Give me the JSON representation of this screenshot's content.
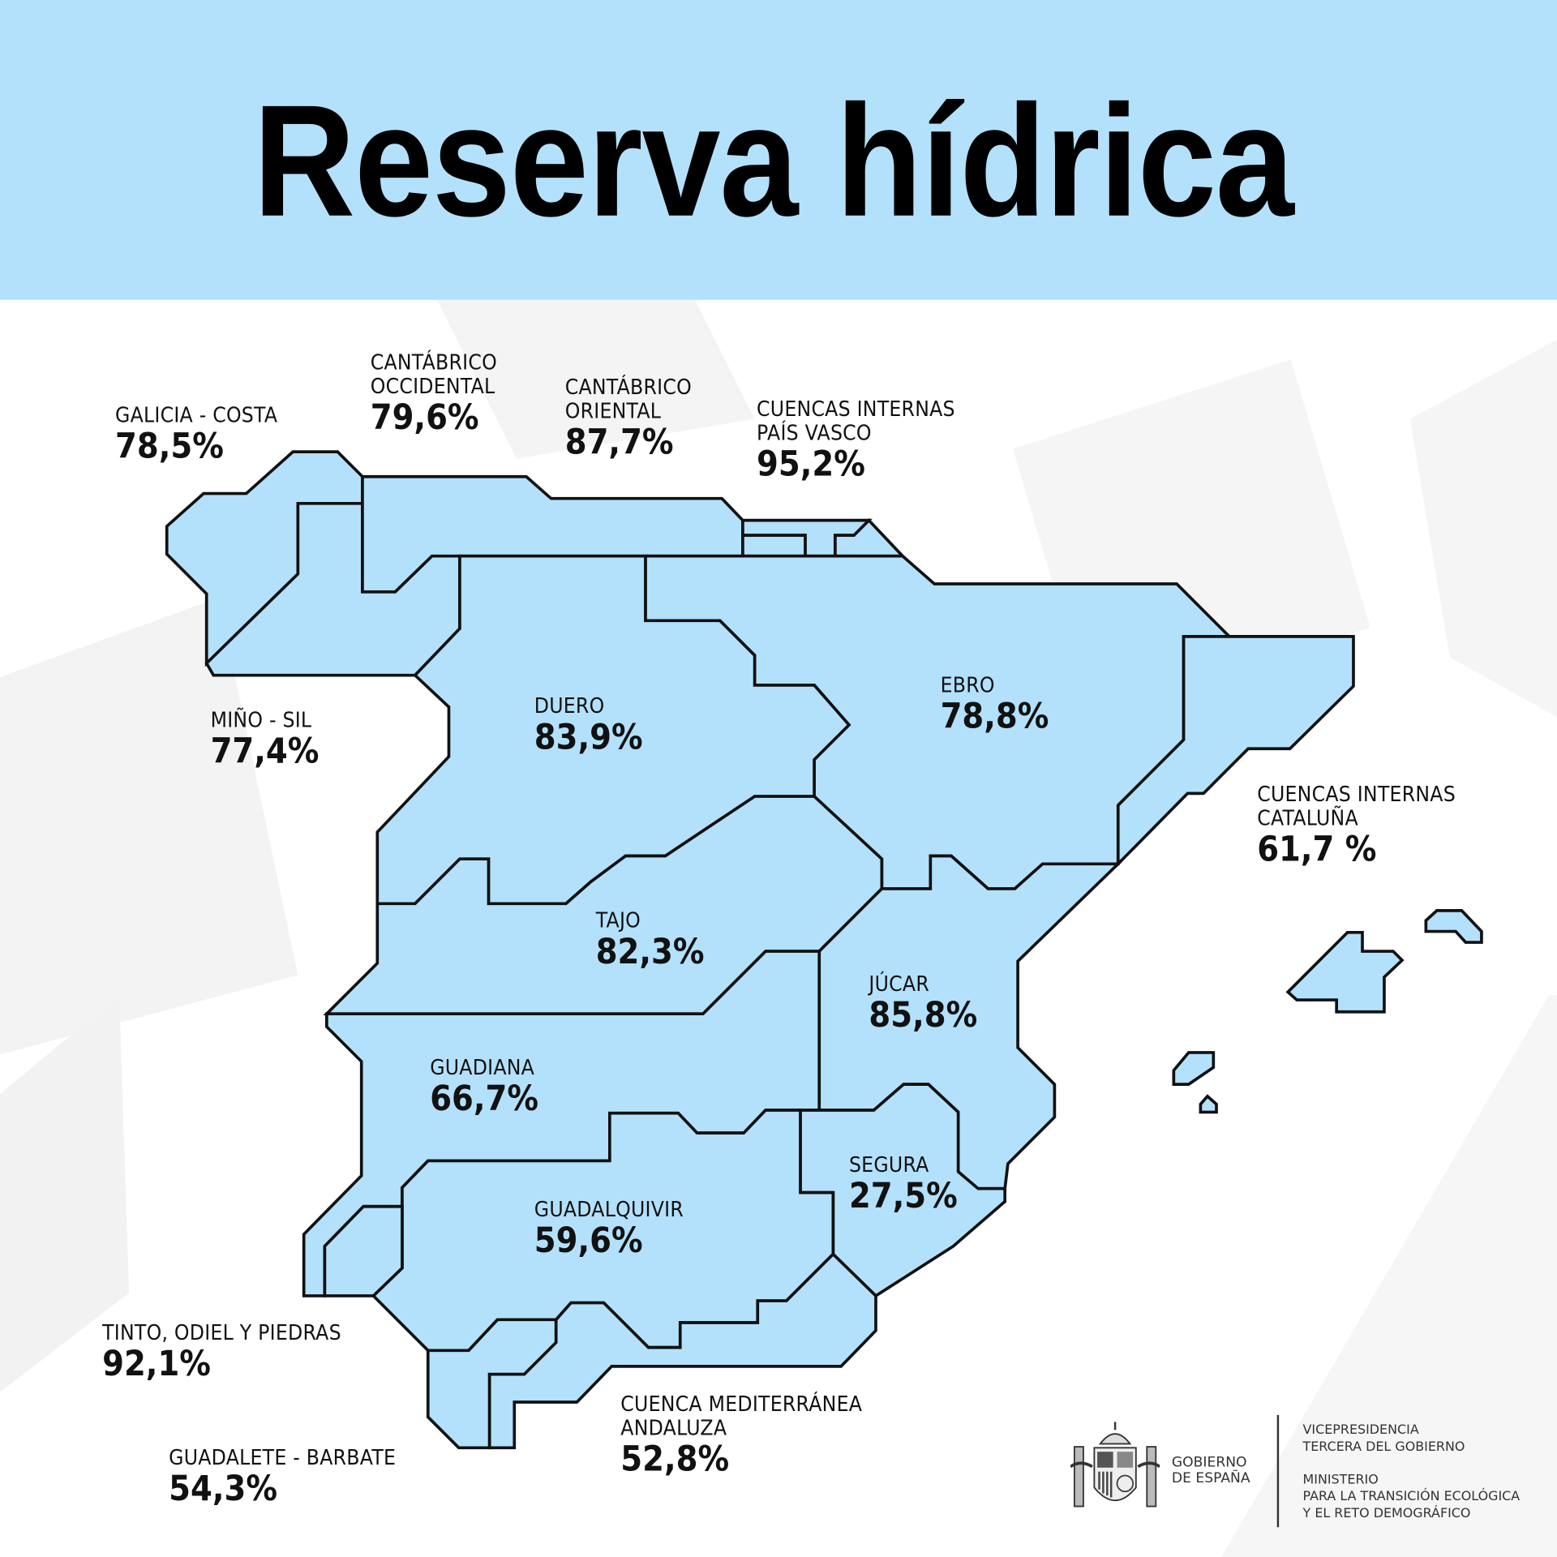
{
  "header": {
    "title": "Reserva hídrica"
  },
  "colors": {
    "header_bg": "#b3e1fb",
    "basin_fill": "#b3e1fb",
    "border": "#111111"
  },
  "basins": [
    {
      "name_lines": [
        "GALICIA - COSTA"
      ],
      "value": "78,5%"
    },
    {
      "name_lines": [
        "CANTÁBRICO",
        "OCCIDENTAL"
      ],
      "value": "79,6%"
    },
    {
      "name_lines": [
        "CANTÁBRICO",
        "ORIENTAL"
      ],
      "value": "87,7%"
    },
    {
      "name_lines": [
        "CUENCAS INTERNAS",
        "PAÍS VASCO"
      ],
      "value": "95,2%"
    },
    {
      "name_lines": [
        "MIÑO - SIL"
      ],
      "value": "77,4%"
    },
    {
      "name_lines": [
        "DUERO"
      ],
      "value": "83,9%"
    },
    {
      "name_lines": [
        "EBRO"
      ],
      "value": "78,8%"
    },
    {
      "name_lines": [
        "CUENCAS INTERNAS",
        "CATALUÑA"
      ],
      "value": "61,7 %"
    },
    {
      "name_lines": [
        "TAJO"
      ],
      "value": "82,3%"
    },
    {
      "name_lines": [
        "JÚCAR"
      ],
      "value": "85,8%"
    },
    {
      "name_lines": [
        "GUADIANA"
      ],
      "value": "66,7%"
    },
    {
      "name_lines": [
        "SEGURA"
      ],
      "value": "27,5%"
    },
    {
      "name_lines": [
        "GUADALQUIVIR"
      ],
      "value": "59,6%"
    },
    {
      "name_lines": [
        "TINTO, ODIEL Y PIEDRAS"
      ],
      "value": "92,1%"
    },
    {
      "name_lines": [
        "CUENCA MEDITERRÁNEA",
        "ANDALUZA"
      ],
      "value": "52,8%"
    },
    {
      "name_lines": [
        "GUADALETE - BARBATE"
      ],
      "value": "54,3%"
    }
  ],
  "footer": {
    "gobierno": [
      "GOBIERNO",
      "DE ESPAÑA"
    ],
    "vicepresidencia": [
      "VICEPRESIDENCIA",
      "TERCERA DEL GOBIERNO"
    ],
    "ministerio": [
      "MINISTERIO",
      "PARA LA TRANSICIÓN ECOLÓGICA",
      "Y EL RETO DEMOGRÁFICO"
    ]
  }
}
